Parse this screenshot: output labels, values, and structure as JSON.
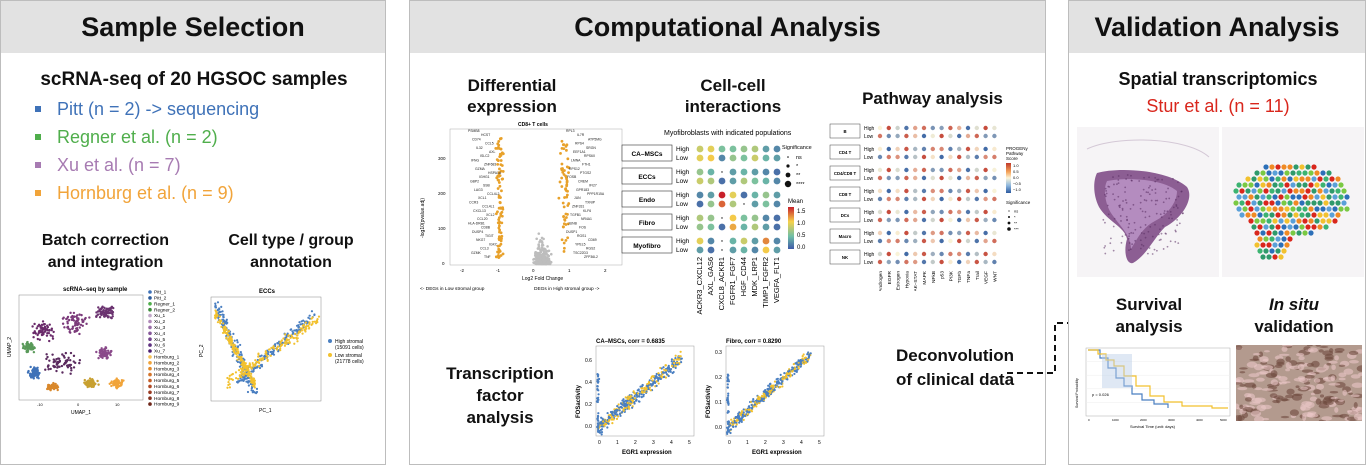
{
  "panels": {
    "sample": {
      "title": "Sample Selection",
      "heading": "scRNA-seq of 20 HGSOC samples",
      "cohorts": [
        {
          "label": "Pitt (n = 2) -> sequencing",
          "color": "#3f72b8"
        },
        {
          "label": "Regner et al. (n = 2)",
          "color": "#4fae4b"
        },
        {
          "label": "Xu et al.  (n = 7)",
          "color": "#a77bb2"
        },
        {
          "label": "Hornburg et al. (n = 9)",
          "color": "#f1a43a"
        }
      ],
      "batch": {
        "line1": "Batch correction",
        "line2": "and integration"
      },
      "celltype": {
        "line1": "Cell type / group",
        "line2": "annotation"
      },
      "umap": {
        "title": "scRNA–seq by sample",
        "xlabel": "UMAP_1",
        "ylabel": "UMAP_2",
        "ticks": [
          "-10",
          "0",
          "10"
        ],
        "legend": [
          "Pitt_1",
          "Pitt_2",
          "Regner_1",
          "Regner_2",
          "Xu_1",
          "Xu_2",
          "Xu_3",
          "Xu_4",
          "Xu_5",
          "Xu_6",
          "Xu_7",
          "Hornburg_1",
          "Hornburg_2",
          "Hornburg_3",
          "Hornburg_4",
          "Hornburg_5",
          "Hornburg_6",
          "Hornburg_7",
          "Hornburg_8",
          "Hornburg_9"
        ]
      },
      "pca": {
        "title": "ECCs",
        "xlabel": "PC_1",
        "ylabel": "PC_2",
        "high_label": "High stromal",
        "high_count": "(15091 cells)",
        "low_label": "Low stromal",
        "low_count": "(21778 cells)",
        "high_color": "#4a7fc1",
        "low_color": "#f2c12e"
      }
    },
    "computational": {
      "title": "Computational Analysis",
      "de": {
        "line1": "Differential",
        "line2": "expression",
        "plot_title": "CD8+ T cells",
        "xlabel": "Log2 Fold Change",
        "ylabel": "-log10(pvalue.adj)",
        "left_caption": "<- DEGs in Low stromal group",
        "right_caption": "DEGs in High stromal group ->",
        "yticks": [
          "0",
          "100",
          "200",
          "300"
        ],
        "xticks": [
          "-2",
          "-1",
          "0",
          "1",
          "2"
        ],
        "left_genes": [
          "PSMB8",
          "HCST",
          "CD74",
          "CCL5",
          "IL32",
          "AXL",
          "ISLC2",
          "IFNG",
          "ZNF683",
          "GZMA",
          "HSPA1A",
          "IGHG1",
          "GBP2",
          "SSB",
          "LAG3",
          "CCL4L2",
          "XCL1",
          "CCR3",
          "CCL4L1",
          "CXCL13",
          "XCL2",
          "CCL20",
          "HLA-DRB1",
          "CD8B",
          "DUSP4",
          "TIGIT",
          "NKG7",
          "IGKC",
          "CCL3",
          "GZMK",
          "TNF"
        ],
        "right_genes": [
          "RPL3",
          "IL7R",
          "ATP5MG",
          "RPS4",
          "SRGN",
          "EEF1A1",
          "RPS6X",
          "LMNA",
          "FTH1",
          "RPS12",
          "PTGS2",
          "FOSB",
          "CREM",
          "IFI27",
          "GPR183",
          "PPP1R15A",
          "JUN",
          "TXNIP",
          "ZNF331",
          "KLF6",
          "TGFB1",
          "NR4A1",
          "JUNB",
          "FOS",
          "DUSP1",
          "RGS1",
          "CD69",
          "YPEL5",
          "RGS2",
          "TSC22D3",
          "ZFP36L2"
        ]
      },
      "cc": {
        "line1": "Cell-cell",
        "line2": "interactions",
        "subtitle": "Myofibroblasts with indicated populations",
        "groups": [
          "CA–MSCs",
          "ECCs",
          "Endo",
          "Fibro",
          "Myofibro"
        ],
        "levels": [
          "High",
          "Low"
        ],
        "pairs": [
          "ACKR3_CXCL12",
          "AXL_GAS6",
          "CXCL8_ACKR1",
          "FGFR1_FGF7",
          "HGF_CD44",
          "MDK_LRP1",
          "TIMP1_FGFR2",
          "VEGFA_FLT1"
        ],
        "sig_title": "Significance",
        "sig_levels": [
          "ns",
          "*",
          "**",
          "****"
        ],
        "mean_title": "Mean",
        "mean_ticks": [
          "1.5",
          "1.0",
          "0.5",
          "0.0"
        ],
        "dots": [
          [
            0.8,
            0.9,
            0.5,
            0.5,
            0.6,
            0.7,
            0.3,
            0.2
          ],
          [
            0.9,
            1.0,
            0.2,
            0.6,
            0.5,
            0.8,
            0.4,
            0.3
          ],
          [
            0.6,
            0.4,
            0.0,
            0.3,
            0.4,
            0.3,
            0.2,
            0.1
          ],
          [
            0.8,
            0.7,
            0.1,
            0.3,
            0.7,
            0.5,
            0.4,
            0.2
          ],
          [
            0.2,
            0.3,
            1.5,
            0.9,
            0.1,
            0.4,
            0.6,
            0.3
          ],
          [
            0.1,
            0.6,
            1.3,
            0.7,
            0.0,
            0.3,
            0.5,
            0.2
          ],
          [
            0.7,
            0.6,
            0.0,
            1.0,
            0.5,
            0.6,
            0.2,
            0.1
          ],
          [
            0.6,
            0.5,
            0.1,
            1.1,
            0.4,
            0.7,
            0.3,
            0.1
          ],
          [
            0.9,
            0.2,
            0.0,
            0.4,
            0.8,
            0.3,
            1.2,
            0.2
          ],
          [
            0.3,
            0.1,
            0.0,
            0.3,
            0.4,
            0.2,
            1.0,
            0.3
          ]
        ]
      },
      "pathway": {
        "title": "Pathway analysis",
        "groups": [
          "B",
          "CD4 T",
          "CD4/CD8 T",
          "CD8 T",
          "DCs",
          "Macro",
          "NK"
        ],
        "levels": [
          "High",
          "Low"
        ],
        "pathways": [
          "Androgen",
          "EGFR",
          "Estrogen",
          "Hypoxia",
          "JAK–STAT",
          "MAPK",
          "NFkB",
          "p53",
          "PI3K",
          "TGFb",
          "TNFa",
          "Trail",
          "VEGF",
          "WNT"
        ],
        "legend_title1": "PROGENy",
        "legend_title2": "Pathway",
        "legend_title3": "Score",
        "legend_ticks": [
          "1.0",
          "0.5",
          "0.0",
          "−0.5",
          "−1.0"
        ],
        "sig_title": "Significance",
        "sig_levels": [
          "ns",
          "*",
          "**",
          "***"
        ]
      },
      "tf": {
        "line1": "Transcription",
        "line2": "factor",
        "line3": "analysis",
        "plot1_title": "CA–MSCs, corr = 0.6835",
        "plot2_title": "Fibro, corr = 0.8290",
        "xlabel": "EGR1 expression",
        "ylabel": "FOSactivity",
        "p1_yticks": [
          "0.6",
          "0.4",
          "0.2",
          "0.0"
        ],
        "p2_yticks": [
          "0.3",
          "0.2",
          "0.1",
          "0.0"
        ],
        "xticks": [
          "0",
          "1",
          "2",
          "3",
          "4",
          "5"
        ]
      }
    },
    "validation": {
      "title": "Validation Analysis",
      "spatial": "Spatial transcriptomics",
      "stur": "Stur et al. (n = 11)",
      "survival": {
        "line1": "Survival",
        "line2": "analysis",
        "xlabel": "Survival Time (unit: days)",
        "ylabel": "Survival Probability",
        "pval": "p = 0.026",
        "xticks": [
          "0",
          "1000",
          "2000",
          "3000",
          "4000",
          "5000"
        ]
      },
      "insitu": {
        "italic": "In situ",
        "line2": "validation"
      },
      "deconv": {
        "line1": "Deconvolution",
        "line2": "of clinical data"
      }
    }
  }
}
